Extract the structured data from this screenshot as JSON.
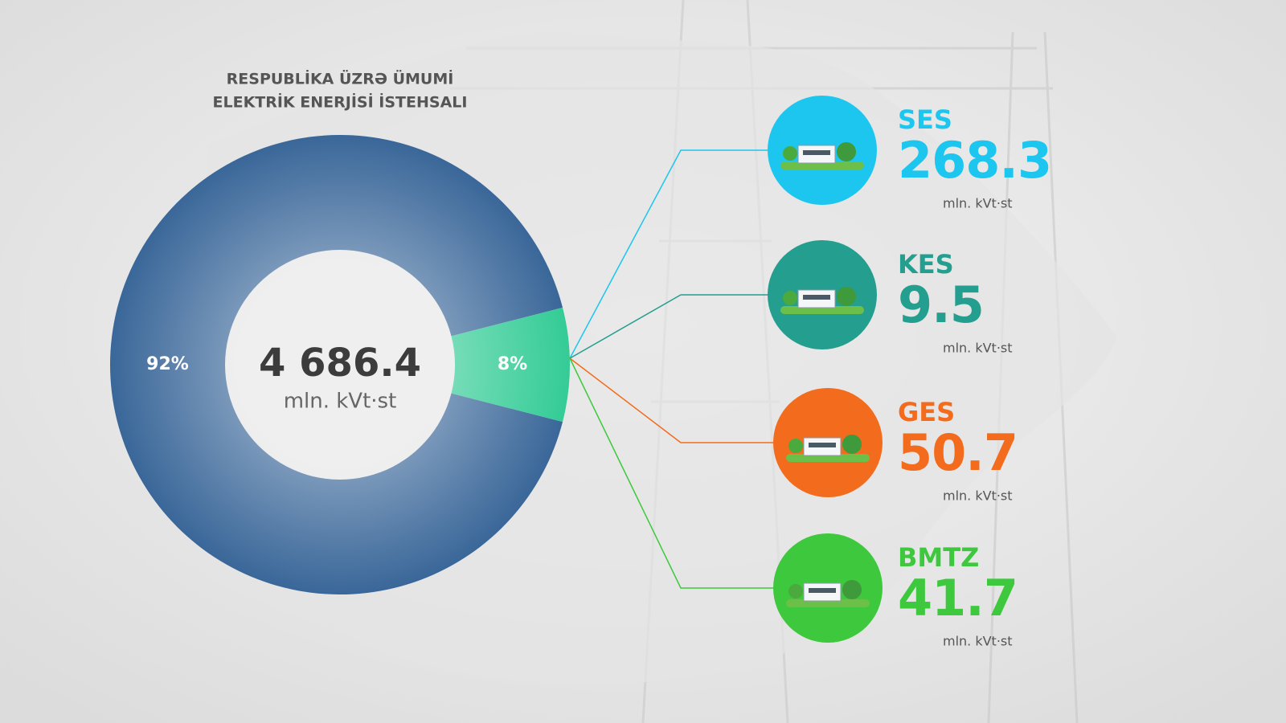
{
  "chart_data": {
    "type": "pie",
    "donut": true,
    "title": [
      "RESPUBLİKA ÜZRƏ ÜMUMİ",
      "ELEKTRİK ENERJİSİ İSTEHSALI"
    ],
    "categories": [
      null,
      null
    ],
    "values": [
      92,
      8
    ],
    "value_labels": [
      "92%",
      "8%"
    ],
    "colors": [
      "#3a6799",
      "#34cc96"
    ],
    "center_value": "4 686.4",
    "center_unit": "mln. kVt·st"
  },
  "breakdown": [
    {
      "name": "SES",
      "value": 268.3,
      "unit": "mln. kVt·st",
      "color": "#1cc6ee"
    },
    {
      "name": "KES",
      "value": 9.5,
      "unit": "mln. kVt·st",
      "color": "#249e8e"
    },
    {
      "name": "GES",
      "value": 50.7,
      "unit": "mln. kVt·st",
      "color": "#f36b1c"
    },
    {
      "name": "BMTZ",
      "value": 41.7,
      "unit": "mln. kVt·st",
      "color": "#3dc83d"
    }
  ]
}
